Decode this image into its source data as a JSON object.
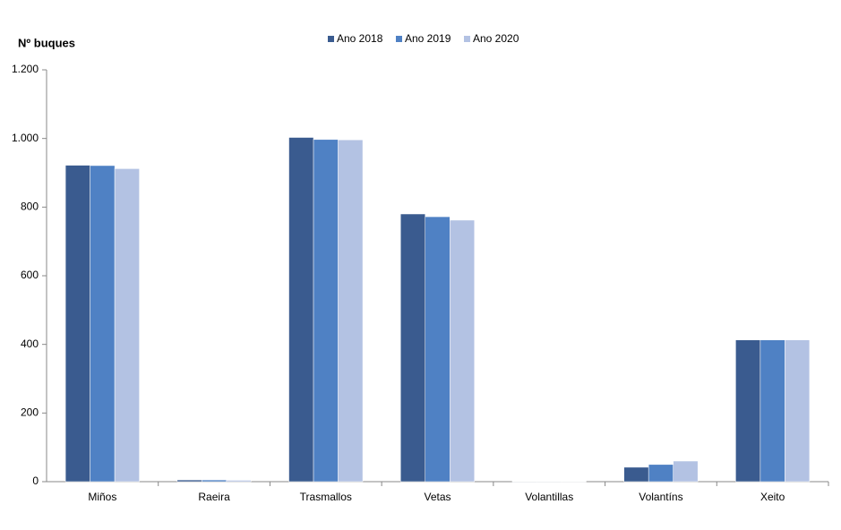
{
  "chart_data": {
    "type": "bar",
    "y_label": "Nº buques",
    "categories": [
      "Miños",
      "Raeira",
      "Trasmallos",
      "Vetas",
      "Volantillas",
      "Volantíns",
      "Xeito"
    ],
    "series": [
      {
        "name": "Ano 2018",
        "color": "#3a5b8f",
        "values": [
          922,
          5,
          1003,
          780,
          1,
          42,
          413
        ]
      },
      {
        "name": "Ano 2019",
        "color": "#4f81c4",
        "values": [
          921,
          5,
          997,
          772,
          1,
          50,
          413
        ]
      },
      {
        "name": "Ano 2020",
        "color": "#b3c2e3",
        "values": [
          912,
          4,
          996,
          762,
          1,
          60,
          413
        ]
      }
    ],
    "ylim": [
      0,
      1200
    ],
    "yticks": [
      0,
      200,
      400,
      600,
      800,
      {
        "value": 1000,
        "label": "1.000"
      },
      {
        "value": 1200,
        "label": "1.200"
      }
    ],
    "grid": false,
    "legend": "top"
  }
}
